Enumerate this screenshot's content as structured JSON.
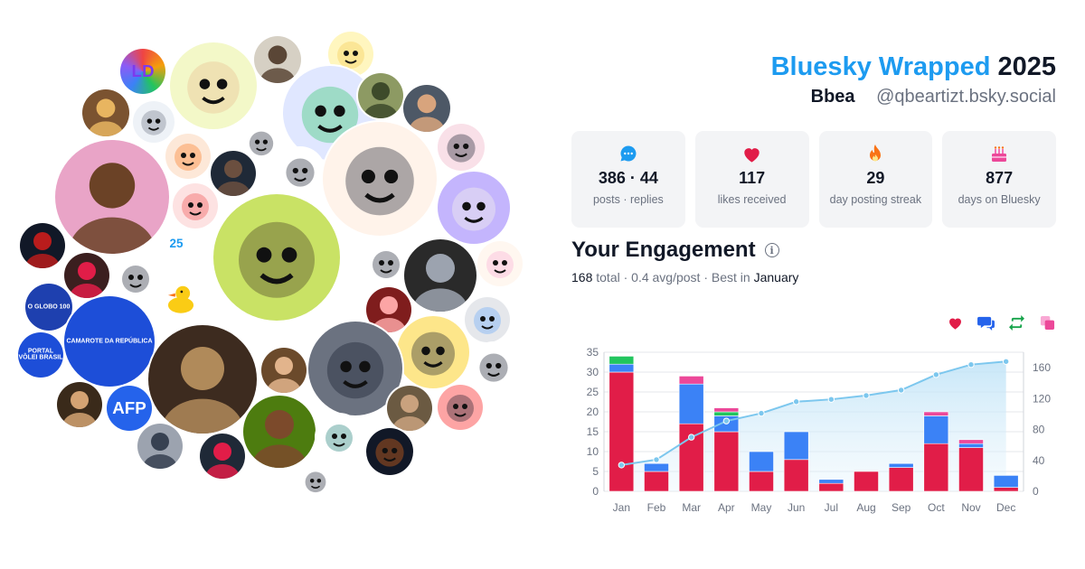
{
  "header": {
    "title_brand": "Bluesky Wrapped",
    "title_year": "2025",
    "display_name": "Bbea",
    "handle": "@qbeartizt.bsky.social"
  },
  "stats": [
    {
      "icon": "speech-bubble-icon",
      "value": "386 · 44",
      "label": "posts · replies",
      "color": "#1d9bf0"
    },
    {
      "icon": "heart-icon",
      "value": "117",
      "label": "likes received",
      "color": "#e11d48"
    },
    {
      "icon": "flame-icon",
      "value": "29",
      "label": "day posting streak",
      "color": "#f97316"
    },
    {
      "icon": "cake-icon",
      "value": "877",
      "label": "days on Bluesky",
      "color": "#ec4899"
    }
  ],
  "engagement": {
    "title": "Your Engagement",
    "total_value": "168",
    "total_word": "total",
    "avg": "0.4 avg/post",
    "best_prefix": "Best in",
    "best_month": "January"
  },
  "legend": [
    {
      "icon": "heart-icon",
      "color": "#e11d48"
    },
    {
      "icon": "reply-icon",
      "color": "#2563eb"
    },
    {
      "icon": "repost-icon",
      "color": "#16a34a"
    },
    {
      "icon": "quote-icon",
      "color": "#ec4899"
    }
  ],
  "avatars": {
    "logos": [
      "LD",
      "25",
      "O GLOBO 100",
      "CAMAROTE DA REPÚBLICA",
      "PORTAL VÔLEI BRASIL",
      "AFP"
    ]
  },
  "chart_data": {
    "type": "bar",
    "stacked": true,
    "categories": [
      "Jan",
      "Feb",
      "Mar",
      "Apr",
      "May",
      "Jun",
      "Jul",
      "Aug",
      "Sep",
      "Oct",
      "Nov",
      "Dec"
    ],
    "series": [
      {
        "values": [
          30,
          5,
          17,
          15,
          5,
          8,
          2,
          5,
          6,
          12,
          11,
          1
        ],
        "color": "#e11d48"
      },
      {
        "values": [
          2,
          2,
          10,
          4,
          5,
          7,
          1,
          0,
          1,
          7,
          1,
          3
        ],
        "color": "#3b82f6"
      },
      {
        "values": [
          2,
          0,
          0,
          1,
          0,
          0,
          0,
          0,
          0,
          0,
          0,
          0
        ],
        "color": "#22c55e"
      },
      {
        "values": [
          0,
          0,
          2,
          1,
          0,
          0,
          0,
          0,
          0,
          1,
          1,
          0
        ],
        "color": "#ec4899"
      }
    ],
    "cumulative": {
      "values": [
        34,
        41,
        70,
        91,
        101,
        116,
        119,
        124,
        131,
        151,
        164,
        168
      ],
      "color": "#7cc7ee"
    },
    "ylim_left": [
      0,
      35
    ],
    "yticks_left": [
      0,
      5,
      10,
      15,
      20,
      25,
      30,
      35
    ],
    "ylim_right": [
      0,
      180
    ],
    "yticks_right": [
      0,
      40,
      80,
      120,
      160
    ],
    "grid": true
  }
}
